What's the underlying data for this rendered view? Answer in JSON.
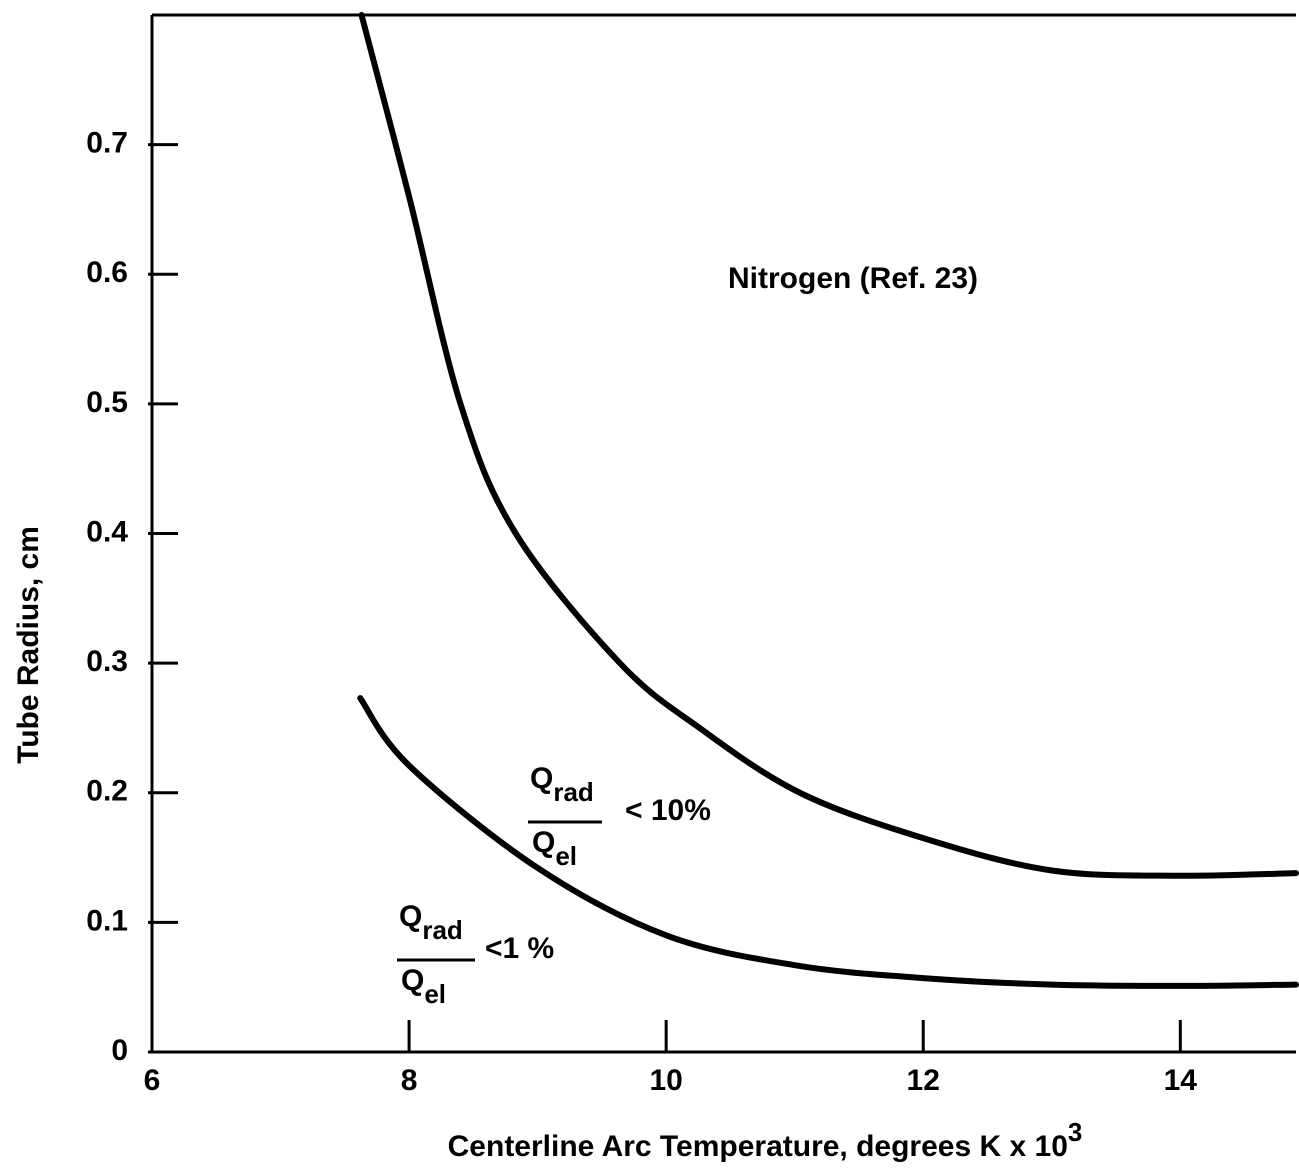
{
  "chart_data": {
    "type": "line",
    "y_label": "Tube Radius, cm",
    "x_label": "Centerline Arc Temperature, degrees K x 10",
    "x_label_superscript": "3",
    "xlim": [
      6,
      14.9
    ],
    "xticks": [
      6,
      8,
      10,
      12,
      14
    ],
    "ylim": [
      0,
      0.8
    ],
    "yticks": [
      0,
      0.1,
      0.2,
      0.3,
      0.4,
      0.5,
      0.6,
      0.7
    ],
    "grid": false,
    "series": [
      {
        "color": "#000000",
        "x": [
          7.63,
          8,
          8.4,
          8.83,
          9.64,
          10.26,
          11.04,
          12,
          13,
          14,
          14.9
        ],
        "values": [
          0.8,
          0.66,
          0.5,
          0.4,
          0.3,
          0.25,
          0.2,
          0.165,
          0.14,
          0.136,
          0.138
        ]
      },
      {
        "color": "#000000",
        "x": [
          7.62,
          8,
          9,
          10,
          11,
          12,
          13,
          14,
          14.9
        ],
        "values": [
          0.273,
          0.221,
          0.142,
          0.09,
          0.067,
          0.057,
          0.052,
          0.051,
          0.052
        ]
      }
    ],
    "annotations": [
      {
        "text": "Nitrogen (Ref. 23)"
      },
      {
        "numerator": "Q",
        "numerator_sub": "rad",
        "denominator": "Q",
        "denominator_sub": "el",
        "relation": "< 10%"
      },
      {
        "numerator": "Q",
        "numerator_sub": "rad",
        "denominator": "Q",
        "denominator_sub": "el",
        "relation": "<1 %"
      }
    ]
  }
}
